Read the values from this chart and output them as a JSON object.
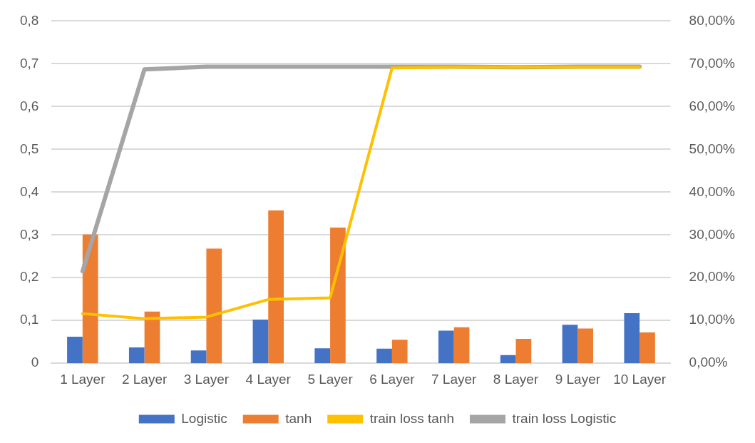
{
  "chart_data": {
    "type": "bar",
    "categories": [
      "1 Layer",
      "2 Layer",
      "3 Layer",
      "4 Layer",
      "5 Layer",
      "6 Layer",
      "7 Layer",
      "8 Layer",
      "9 Layer",
      "10 Layer"
    ],
    "series": [
      {
        "name": "Logistic",
        "color": "#4472c4",
        "axis": "y2",
        "values": [
          6.2,
          3.7,
          3.0,
          10.2,
          3.5,
          3.4,
          7.6,
          1.9,
          9.0,
          11.7
        ]
      },
      {
        "name": "tanh",
        "color": "#ed7d31",
        "axis": "y2",
        "values": [
          30.1,
          12.1,
          26.8,
          35.7,
          31.7,
          5.5,
          8.4,
          5.7,
          8.1,
          7.2
        ]
      },
      {
        "name": "train loss tanh",
        "type": "line",
        "color": "#ffc000",
        "values": [
          0.116,
          0.104,
          0.108,
          0.149,
          0.153,
          0.69,
          0.692,
          0.692,
          0.692,
          0.692
        ]
      },
      {
        "name": "train loss Logistic",
        "type": "line",
        "color": "#a5a5a5",
        "values": [
          0.215,
          0.687,
          0.693,
          0.693,
          0.693,
          0.693,
          0.693,
          0.692,
          0.693,
          0.693
        ]
      }
    ],
    "ylim": [
      0,
      0.8
    ],
    "yticks": [
      {
        "value": 0,
        "label": "0"
      },
      {
        "value": 0.1,
        "label": "0,1"
      },
      {
        "value": 0.2,
        "label": "0,2"
      },
      {
        "value": 0.3,
        "label": "0,3"
      },
      {
        "value": 0.4,
        "label": "0,4"
      },
      {
        "value": 0.5,
        "label": "0,5"
      },
      {
        "value": 0.6,
        "label": "0,6"
      },
      {
        "value": 0.7,
        "label": "0,7"
      },
      {
        "value": 0.8,
        "label": "0,8"
      }
    ],
    "y2lim": [
      0,
      80
    ],
    "y2ticks": [
      {
        "value": 0,
        "label": "0,00%"
      },
      {
        "value": 10,
        "label": "10,00%"
      },
      {
        "value": 20,
        "label": "20,00%"
      },
      {
        "value": 30,
        "label": "30,00%"
      },
      {
        "value": 40,
        "label": "40,00%"
      },
      {
        "value": 50,
        "label": "50,00%"
      },
      {
        "value": 60,
        "label": "60,00%"
      },
      {
        "value": 70,
        "label": "70,00%"
      },
      {
        "value": 80,
        "label": "80,00%"
      }
    ],
    "grid": "y",
    "legend": "bottom",
    "marker": "none",
    "line_style": "solid"
  }
}
